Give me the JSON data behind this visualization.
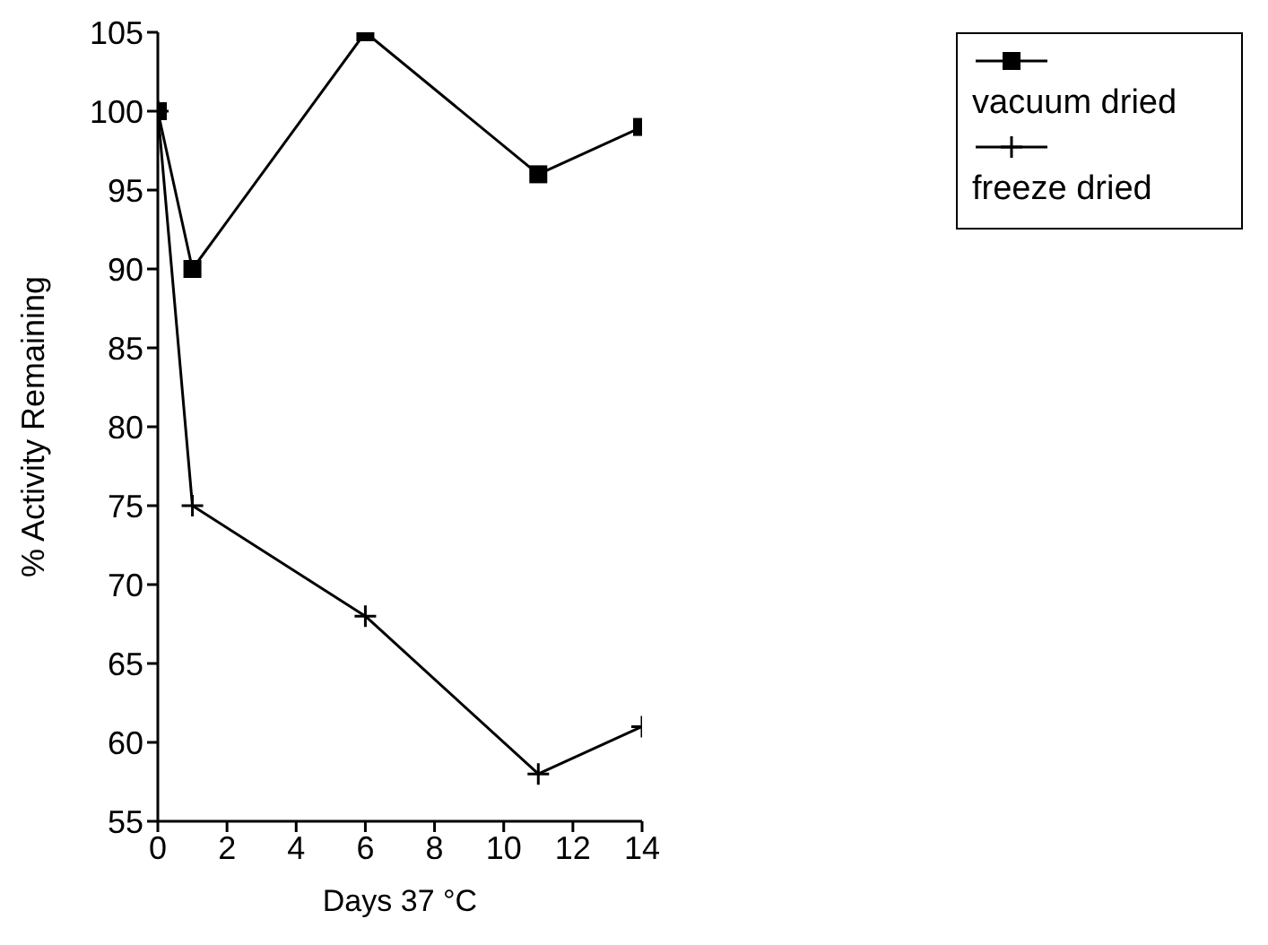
{
  "chart_data": {
    "type": "line",
    "xlabel": "Days 37 °C",
    "ylabel": "% Activity Remaining",
    "x": [
      0,
      1,
      6,
      11,
      14
    ],
    "series": [
      {
        "name": "vacuum dried",
        "color": "#000000",
        "values": [
          100,
          90,
          105,
          96,
          99
        ],
        "marker": "square"
      },
      {
        "name": "freeze dried",
        "color": "#000000",
        "values": [
          100,
          75,
          68,
          58,
          61
        ],
        "marker": "cross"
      }
    ],
    "xlim": [
      0,
      14
    ],
    "xticks": [
      0,
      2,
      4,
      6,
      8,
      10,
      12,
      14
    ],
    "ylim": [
      55,
      105
    ],
    "yticks": [
      55,
      60,
      65,
      70,
      75,
      80,
      85,
      90,
      95,
      100,
      105
    ],
    "grid": false,
    "legend": "top right",
    "line_style": "solid"
  }
}
